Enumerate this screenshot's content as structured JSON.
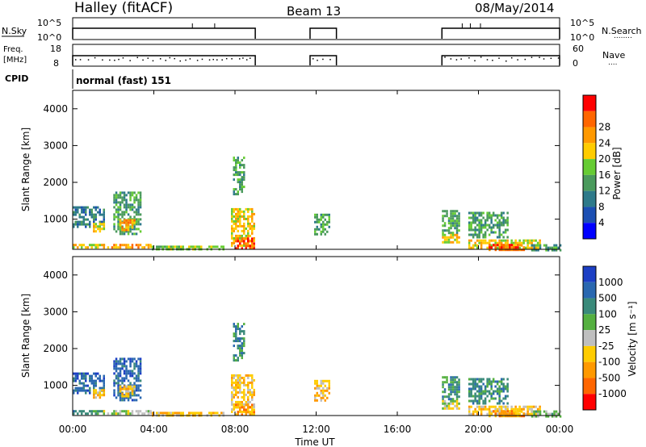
{
  "header": {
    "station": "Halley (fitACF)",
    "beam": "Beam 13",
    "date": "08/May/2014"
  },
  "panels": {
    "nsky": {
      "left_label": "N.Sky",
      "left_ticks": [
        "10^5",
        "10^0"
      ],
      "right_ticks": [
        "10^5",
        "10^0"
      ],
      "right_label": "N.Search",
      "right_legend": "........"
    },
    "freq": {
      "left_label_1": "Freq.",
      "left_label_2": "[MHz]",
      "left_ticks": [
        "18",
        "8"
      ],
      "right_ticks": [
        "60",
        "0"
      ],
      "right_label": "Nave",
      "right_legend": "...."
    },
    "cpid": {
      "label": "CPID",
      "text": "normal (fast) 151"
    }
  },
  "x_axis": {
    "label": "Time UT",
    "ticks": [
      "00:00",
      "04:00",
      "08:00",
      "12:00",
      "16:00",
      "20:00",
      "00:00"
    ]
  },
  "power_panel": {
    "ylabel": "Slant Range [km]",
    "yticks": [
      "1000",
      "2000",
      "3000",
      "4000"
    ],
    "colorbar_label": "Power [dB]",
    "colorbar_ticks": [
      "4",
      "8",
      "12",
      "16",
      "20",
      "24",
      "28"
    ],
    "colors": [
      "#0000ff",
      "#1c4fb3",
      "#2e7a8a",
      "#4a9a5c",
      "#66cc33",
      "#ffcc00",
      "#ff9900",
      "#ff6600",
      "#ff0000"
    ]
  },
  "velocity_panel": {
    "ylabel": "Slant Range [km]",
    "yticks": [
      "1000",
      "2000",
      "3000",
      "4000"
    ],
    "colorbar_label": "Velocity [m s⁻¹]",
    "colorbar_ticks": [
      "1000",
      "500",
      "100",
      "25",
      "-25",
      "-100",
      "-500",
      "-1000"
    ],
    "colors": [
      "#1c3fc4",
      "#2a68b0",
      "#3a8a7a",
      "#55b040",
      "#bfbfbf",
      "#ffcc00",
      "#ff9900",
      "#ff6600",
      "#ff0000"
    ]
  },
  "chart_data": {
    "type": "heatmap",
    "x_unit": "hours UT",
    "x_range": [
      0,
      24
    ],
    "y_unit": "km",
    "y_range": [
      180,
      4500
    ],
    "operating_intervals_hours": [
      [
        0,
        9.0
      ],
      [
        11.7,
        13.0
      ],
      [
        18.2,
        24
      ]
    ],
    "scatter_regions": [
      {
        "t0": 0.0,
        "t1": 1.5,
        "r0": 800,
        "r1": 1350,
        "power": 8,
        "velocity": 500
      },
      {
        "t0": 1.0,
        "t1": 1.5,
        "r0": 650,
        "r1": 900,
        "power": 20,
        "velocity": -100
      },
      {
        "t0": 2.0,
        "t1": 3.3,
        "r0": 600,
        "r1": 1750,
        "power": 12,
        "velocity": 500
      },
      {
        "t0": 2.3,
        "t1": 3.0,
        "r0": 700,
        "r1": 1000,
        "power": 24,
        "velocity": -100
      },
      {
        "t0": 0.0,
        "t1": 1.5,
        "r0": 200,
        "r1": 330,
        "power": 20,
        "velocity": 100
      },
      {
        "t0": 1.5,
        "t1": 3.8,
        "r0": 220,
        "r1": 330,
        "power": 24,
        "velocity": -25
      },
      {
        "t0": 3.8,
        "t1": 7.5,
        "r0": 190,
        "r1": 280,
        "power": 16,
        "velocity": -100
      },
      {
        "t0": 7.9,
        "t1": 8.4,
        "r0": 1700,
        "r1": 2700,
        "power": 12,
        "velocity": 100
      },
      {
        "t0": 7.8,
        "t1": 8.9,
        "r0": 250,
        "r1": 1300,
        "power": 20,
        "velocity": -100
      },
      {
        "t0": 8.0,
        "t1": 8.9,
        "r0": 200,
        "r1": 500,
        "power": 28,
        "velocity": -500
      },
      {
        "t0": 11.9,
        "t1": 12.6,
        "r0": 600,
        "r1": 1150,
        "power": 12,
        "velocity": -100
      },
      {
        "t0": 18.2,
        "t1": 19.0,
        "r0": 600,
        "r1": 1250,
        "power": 12,
        "velocity": 100
      },
      {
        "t0": 18.2,
        "t1": 19.0,
        "r0": 350,
        "r1": 600,
        "power": 20,
        "velocity": -25
      },
      {
        "t0": 19.5,
        "t1": 21.4,
        "r0": 500,
        "r1": 1200,
        "power": 12,
        "velocity": 100
      },
      {
        "t0": 19.5,
        "t1": 23.0,
        "r0": 220,
        "r1": 450,
        "power": 20,
        "velocity": -100
      },
      {
        "t0": 20.5,
        "t1": 22.2,
        "r0": 180,
        "r1": 330,
        "power": 28,
        "velocity": -500
      },
      {
        "t0": 22.5,
        "t1": 24.0,
        "r0": 180,
        "r1": 320,
        "power": 12,
        "velocity": 25
      }
    ]
  }
}
